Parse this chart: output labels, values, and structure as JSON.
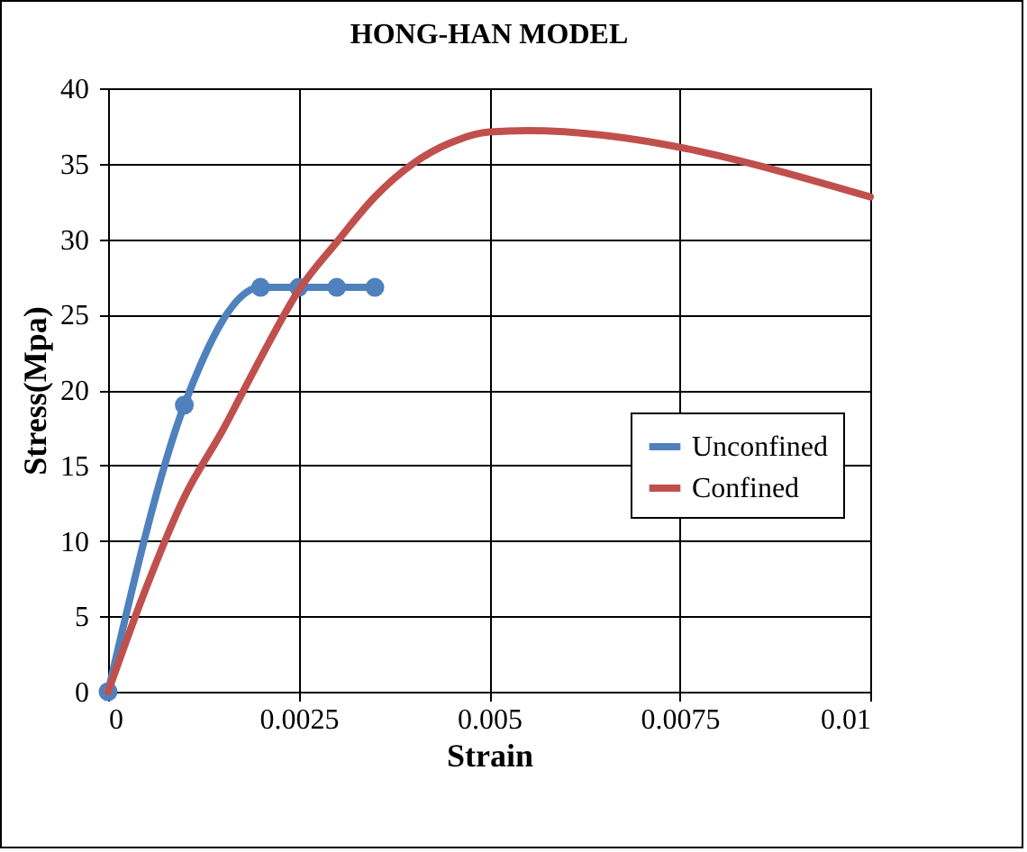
{
  "chart_data": {
    "type": "line",
    "title": "HONG-HAN MODEL",
    "xlabel": "Strain",
    "ylabel": "Stress(Mpa)",
    "xlim": [
      0,
      0.01
    ],
    "xticks": [
      0,
      0.0025,
      0.005,
      0.0075,
      0.01
    ],
    "ylim": [
      0,
      40
    ],
    "yticks": [
      0,
      5,
      10,
      15,
      20,
      25,
      30,
      35,
      40
    ],
    "grid": true,
    "legend": "right",
    "line_style": "solid",
    "series": [
      {
        "name": "Unconfined",
        "color": "#4f81bd",
        "marker": "circle",
        "x": [
          0,
          0.001,
          0.002,
          0.0025,
          0.003,
          0.0035
        ],
        "values": [
          0,
          19,
          26.8,
          26.8,
          26.8,
          26.8
        ]
      },
      {
        "name": "Confined",
        "color": "#c0504d",
        "marker": "none",
        "x": [
          0,
          0.0005,
          0.001,
          0.0015,
          0.002,
          0.0025,
          0.003,
          0.0035,
          0.004,
          0.0045,
          0.005,
          0.0055,
          0.01
        ],
        "values": [
          0,
          6.9,
          12.9,
          17.3,
          22.1,
          26.6,
          29.8,
          32.8,
          35,
          36.4,
          37.1,
          37.2,
          32.8
        ]
      }
    ]
  }
}
